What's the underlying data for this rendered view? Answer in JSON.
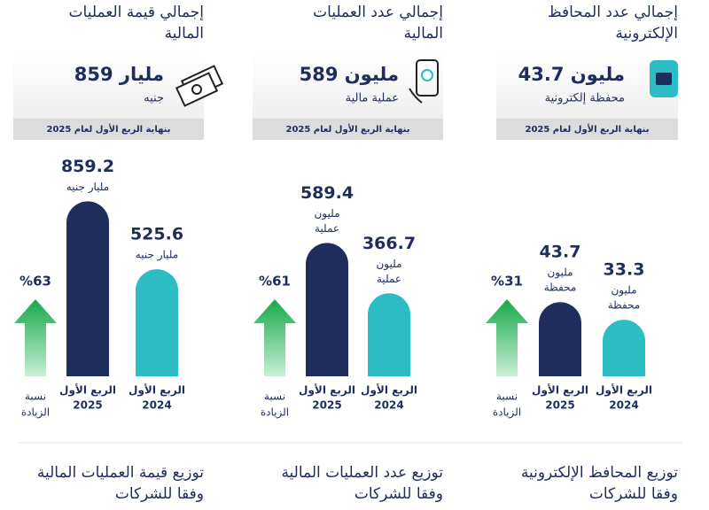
{
  "cards": [
    {
      "title": [
        "إجمالي قيمة العمليات",
        "المالية"
      ],
      "figure": "859 مليار",
      "unit": "جنيه",
      "note": "بنهاية الربع الأول لعام 2025"
    },
    {
      "title": [
        "إجمالي عدد العمليات",
        "المالية"
      ],
      "figure": "589 مليون",
      "unit": "عملية مالية",
      "note": "بنهاية الربع الأول لعام 2025"
    },
    {
      "title": [
        "إجمالي عدد المحافظ",
        "الإلكترونية"
      ],
      "figure": "43.7 مليون",
      "unit": "محفظة إلكترونية",
      "note": "بنهاية الربع الأول لعام 2025"
    }
  ],
  "chart_data": [
    {
      "type": "bar",
      "categories": [
        [
          "الربع الأول",
          "2025"
        ],
        [
          "الربع الأول",
          "2024"
        ]
      ],
      "values": [
        859.2,
        525.6
      ],
      "units": [
        [
          "مليار جنيه"
        ],
        [
          "مليار جنيه"
        ]
      ],
      "colors": [
        "#1f2d5c",
        "#2bbcc4"
      ],
      "ylim": [
        0,
        1000
      ],
      "increase": "%63",
      "increase_label": [
        "نسبة",
        "الزيادة"
      ]
    },
    {
      "type": "bar",
      "categories": [
        [
          "الربع الأول",
          "2025"
        ],
        [
          "الربع الأول",
          "2024"
        ]
      ],
      "values": [
        589.4,
        366.7
      ],
      "units": [
        [
          "مليون",
          "عملية"
        ],
        [
          "مليون",
          "عملية"
        ]
      ],
      "colors": [
        "#1f2d5c",
        "#2bbcc4"
      ],
      "ylim": [
        0,
        900
      ],
      "increase": "%61",
      "increase_label": [
        "نسبة",
        "الزيادة"
      ]
    },
    {
      "type": "bar",
      "categories": [
        [
          "الربع الأول",
          "2025"
        ],
        [
          "الربع الأول",
          "2024"
        ]
      ],
      "values": [
        43.7,
        33.3
      ],
      "units": [
        [
          "مليون",
          "محفظة"
        ],
        [
          "مليون",
          "محفظة"
        ]
      ],
      "colors": [
        "#1f2d5c",
        "#2bbcc4"
      ],
      "ylim": [
        0,
        120
      ],
      "increase": "%31",
      "increase_label": [
        "نسبة",
        "الزيادة"
      ]
    }
  ],
  "footer": [
    [
      "توزيع قيمة العمليات المالية",
      "وفقا للشركات"
    ],
    [
      "توزيع عدد العمليات المالية",
      "وفقا للشركات"
    ],
    [
      "توزيع المحافظ الإلكترونية",
      "وفقا للشركات"
    ]
  ]
}
